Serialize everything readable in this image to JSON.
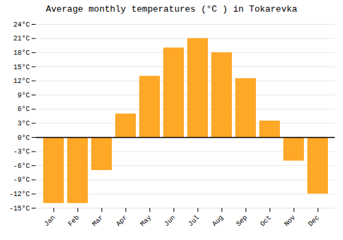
{
  "chart_data": {
    "type": "bar",
    "title": "Average monthly temperatures (°C ) in Tokarevka",
    "categories": [
      "Jan",
      "Feb",
      "Mar",
      "Apr",
      "May",
      "Jun",
      "Jul",
      "Aug",
      "Sep",
      "Oct",
      "Nov",
      "Dec"
    ],
    "values": [
      -14,
      -14,
      -7,
      5,
      13,
      19,
      21,
      18,
      12.5,
      3.5,
      -5,
      -12
    ],
    "color": "#FFA726",
    "ylim": [
      -15,
      24
    ],
    "yticks": [
      {
        "value": -15,
        "label": "-15°C"
      },
      {
        "value": -12,
        "label": "-12°C"
      },
      {
        "value": -9,
        "label": "-9°C"
      },
      {
        "value": -6,
        "label": "-6°C"
      },
      {
        "value": -3,
        "label": "-3°C"
      },
      {
        "value": 0,
        "label": "0°C"
      },
      {
        "value": 3,
        "label": "3°C"
      },
      {
        "value": 6,
        "label": "6°C"
      },
      {
        "value": 9,
        "label": "9°C"
      },
      {
        "value": 12,
        "label": "12°C"
      },
      {
        "value": 15,
        "label": "15°C"
      },
      {
        "value": 18,
        "label": "18°C"
      },
      {
        "value": 21,
        "label": "21°C"
      },
      {
        "value": 24,
        "label": "24°C"
      }
    ],
    "grid": true
  }
}
